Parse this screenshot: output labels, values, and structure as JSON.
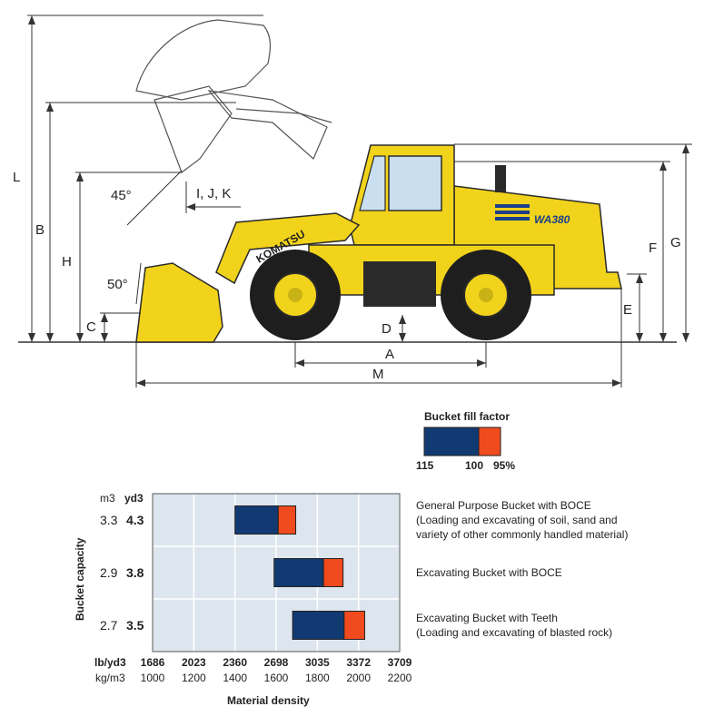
{
  "dimensions": {
    "L": "L",
    "B": "B",
    "H": "H",
    "C": "C",
    "D": "D",
    "E": "E",
    "F": "F",
    "G": "G",
    "A": "A",
    "M": "M",
    "IJK": "I, J, K",
    "angle_dump": "45°",
    "angle_rollback": "50°"
  },
  "machine": {
    "brand": "KOMATSU",
    "model": "WA380",
    "colors": {
      "body": "#f2d31b",
      "dark": "#2a2a2a",
      "wheel": "#f2d31b",
      "tire": "#1e1e1e"
    }
  },
  "legend": {
    "title": "Bucket fill factor",
    "labels": [
      "115",
      "100",
      "95%"
    ],
    "colors": {
      "fill": "#123a72",
      "accent": "#f04b1e"
    }
  },
  "chart_data": {
    "type": "bar",
    "ylabel": "Bucket capacity",
    "xlabel": "Material density",
    "y_unit_metric": "m3",
    "y_unit_imperial": "yd3",
    "x_unit_imperial": "lb/yd3",
    "x_unit_metric": "kg/m3",
    "x_ticks_imperial": [
      "1686",
      "2023",
      "2360",
      "2698",
      "3035",
      "3372",
      "3709"
    ],
    "x_ticks_metric": [
      "1000",
      "1200",
      "1400",
      "1600",
      "1800",
      "2000",
      "2200"
    ],
    "xlim": [
      1000,
      2200
    ],
    "rows": [
      {
        "capacity_m3": "3.3",
        "capacity_yd3": "4.3",
        "density_115": 1400,
        "density_100": 1610,
        "density_95": 1695,
        "description": [
          "General Purpose Bucket with BOCE",
          "(Loading and excavating of soil, sand and",
          "variety of other commonly handled material)"
        ]
      },
      {
        "capacity_m3": "2.9",
        "capacity_yd3": "3.8",
        "density_115": 1590,
        "density_100": 1830,
        "density_95": 1925,
        "description": [
          "Excavating Bucket with BOCE"
        ]
      },
      {
        "capacity_m3": "2.7",
        "capacity_yd3": "3.5",
        "density_115": 1680,
        "density_100": 1930,
        "density_95": 2030,
        "description": [
          "Excavating Bucket with Teeth",
          "(Loading and excavating of blasted rock)"
        ]
      }
    ],
    "grid": true,
    "colors": {
      "bg": "#dde6ee",
      "grid": "#ffffff",
      "fill": "#123a72",
      "accent": "#f04b1e"
    }
  }
}
